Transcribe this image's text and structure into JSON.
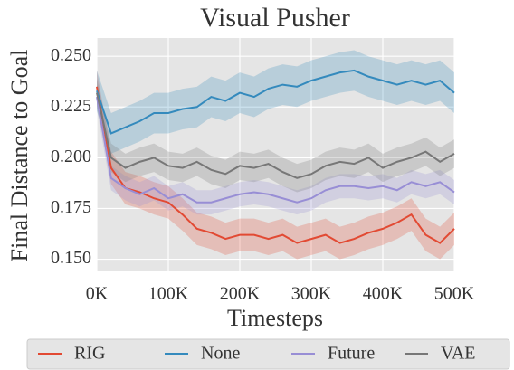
{
  "chart_data": {
    "type": "line",
    "title": "Visual Pusher",
    "xlabel": "Timesteps",
    "ylabel": "Final Distance to Goal",
    "x": [
      0,
      20000,
      40000,
      60000,
      80000,
      100000,
      120000,
      140000,
      160000,
      180000,
      200000,
      220000,
      240000,
      260000,
      280000,
      300000,
      320000,
      340000,
      360000,
      380000,
      400000,
      420000,
      440000,
      460000,
      480000,
      500000
    ],
    "xlim": [
      0,
      500000
    ],
    "xticks": [
      {
        "value": 0,
        "label": "0K"
      },
      {
        "value": 100000,
        "label": "100K"
      },
      {
        "value": 200000,
        "label": "200K"
      },
      {
        "value": 300000,
        "label": "300K"
      },
      {
        "value": 400000,
        "label": "400K"
      },
      {
        "value": 500000,
        "label": "500K"
      }
    ],
    "ylim": [
      0.144,
      0.259
    ],
    "yticks": [
      {
        "value": 0.15,
        "label": "0.150"
      },
      0.175,
      {
        "value": 0.2,
        "label": "0.200"
      },
      0.225,
      {
        "value": 0.25,
        "label": "0.250"
      }
    ],
    "grid": true,
    "legend": "bottom",
    "series": [
      {
        "name": "RIG",
        "color": "#e24a33",
        "values": [
          0.235,
          0.195,
          0.185,
          0.183,
          0.18,
          0.178,
          0.172,
          0.165,
          0.163,
          0.16,
          0.162,
          0.162,
          0.16,
          0.162,
          0.158,
          0.16,
          0.162,
          0.158,
          0.16,
          0.163,
          0.165,
          0.168,
          0.172,
          0.162,
          0.158,
          0.165
        ],
        "upper": [
          0.243,
          0.203,
          0.193,
          0.191,
          0.188,
          0.186,
          0.18,
          0.173,
          0.171,
          0.168,
          0.17,
          0.17,
          0.168,
          0.17,
          0.166,
          0.168,
          0.17,
          0.166,
          0.168,
          0.171,
          0.173,
          0.176,
          0.18,
          0.17,
          0.166,
          0.173
        ],
        "lower": [
          0.227,
          0.187,
          0.177,
          0.175,
          0.172,
          0.17,
          0.164,
          0.157,
          0.155,
          0.152,
          0.154,
          0.154,
          0.152,
          0.154,
          0.15,
          0.152,
          0.154,
          0.15,
          0.152,
          0.155,
          0.157,
          0.16,
          0.164,
          0.154,
          0.15,
          0.157
        ]
      },
      {
        "name": "None",
        "color": "#348abd",
        "values": [
          0.233,
          0.212,
          0.215,
          0.218,
          0.222,
          0.222,
          0.224,
          0.225,
          0.23,
          0.228,
          0.232,
          0.23,
          0.234,
          0.236,
          0.235,
          0.238,
          0.24,
          0.242,
          0.243,
          0.24,
          0.238,
          0.236,
          0.238,
          0.236,
          0.238,
          0.232
        ],
        "upper": [
          0.243,
          0.222,
          0.225,
          0.228,
          0.232,
          0.232,
          0.234,
          0.235,
          0.24,
          0.238,
          0.242,
          0.24,
          0.244,
          0.246,
          0.245,
          0.248,
          0.25,
          0.252,
          0.253,
          0.25,
          0.248,
          0.246,
          0.248,
          0.246,
          0.248,
          0.242
        ],
        "lower": [
          0.223,
          0.202,
          0.205,
          0.208,
          0.212,
          0.212,
          0.214,
          0.215,
          0.22,
          0.218,
          0.222,
          0.22,
          0.224,
          0.226,
          0.225,
          0.228,
          0.23,
          0.232,
          0.233,
          0.23,
          0.228,
          0.226,
          0.228,
          0.226,
          0.228,
          0.222
        ]
      },
      {
        "name": "Future",
        "color": "#988ed5",
        "values": [
          0.23,
          0.19,
          0.185,
          0.182,
          0.185,
          0.18,
          0.182,
          0.178,
          0.178,
          0.18,
          0.182,
          0.183,
          0.182,
          0.18,
          0.178,
          0.18,
          0.184,
          0.186,
          0.186,
          0.185,
          0.186,
          0.184,
          0.188,
          0.186,
          0.188,
          0.183
        ],
        "upper": [
          0.236,
          0.196,
          0.191,
          0.188,
          0.191,
          0.186,
          0.188,
          0.184,
          0.184,
          0.186,
          0.188,
          0.189,
          0.188,
          0.186,
          0.184,
          0.186,
          0.19,
          0.192,
          0.192,
          0.191,
          0.192,
          0.19,
          0.194,
          0.192,
          0.194,
          0.189
        ],
        "lower": [
          0.224,
          0.184,
          0.179,
          0.176,
          0.179,
          0.174,
          0.176,
          0.172,
          0.172,
          0.174,
          0.176,
          0.177,
          0.176,
          0.174,
          0.172,
          0.174,
          0.178,
          0.18,
          0.18,
          0.179,
          0.18,
          0.178,
          0.182,
          0.18,
          0.182,
          0.177
        ]
      },
      {
        "name": "VAE",
        "color": "#777777",
        "values": [
          0.232,
          0.2,
          0.195,
          0.198,
          0.2,
          0.196,
          0.195,
          0.198,
          0.194,
          0.192,
          0.196,
          0.195,
          0.197,
          0.193,
          0.19,
          0.192,
          0.196,
          0.198,
          0.197,
          0.2,
          0.195,
          0.198,
          0.2,
          0.203,
          0.198,
          0.202
        ],
        "upper": [
          0.239,
          0.207,
          0.202,
          0.205,
          0.207,
          0.203,
          0.202,
          0.205,
          0.201,
          0.199,
          0.203,
          0.202,
          0.204,
          0.2,
          0.197,
          0.199,
          0.203,
          0.205,
          0.204,
          0.207,
          0.202,
          0.205,
          0.207,
          0.21,
          0.205,
          0.209
        ],
        "lower": [
          0.225,
          0.193,
          0.188,
          0.191,
          0.193,
          0.189,
          0.188,
          0.191,
          0.187,
          0.185,
          0.189,
          0.188,
          0.19,
          0.186,
          0.183,
          0.185,
          0.189,
          0.191,
          0.19,
          0.193,
          0.188,
          0.191,
          0.193,
          0.196,
          0.191,
          0.195
        ]
      }
    ]
  }
}
